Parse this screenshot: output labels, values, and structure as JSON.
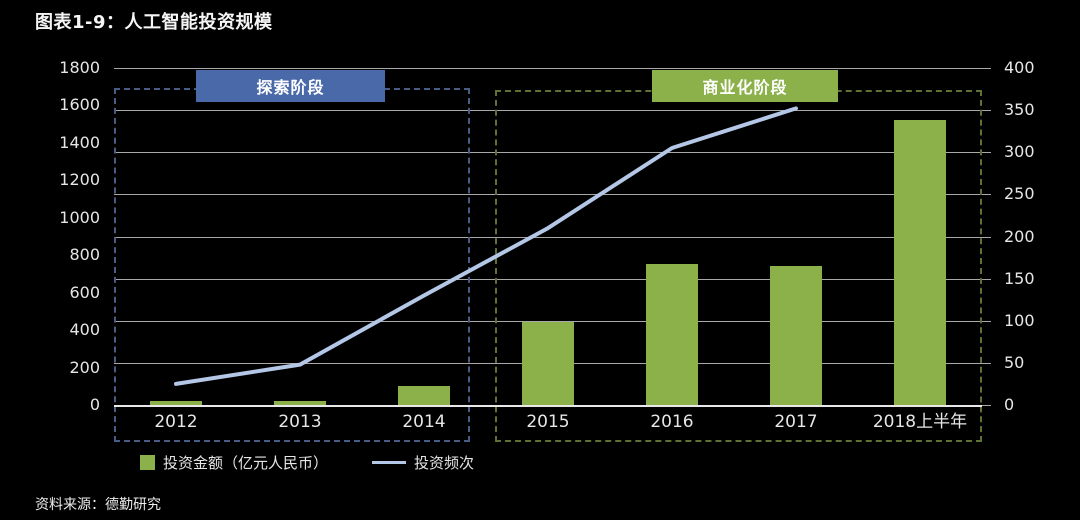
{
  "title": "图表1-9：人工智能投资规模",
  "source": "资料来源：德勤研究",
  "colors": {
    "background": "#000000",
    "bar": "#8cb14a",
    "line": "#b4c7e7",
    "gridline": "#a8a8a8",
    "axis_text": "#e6e6e6",
    "exploration_label_box": "#4a69a8",
    "commercialization_label_box": "#8cb14a",
    "exploration_dash": "#4a5c85",
    "commercialization_dash": "#5f7233"
  },
  "phases": [
    {
      "label": "探索阶段",
      "categories": [
        "2012",
        "2013",
        "2014"
      ]
    },
    {
      "label": "商业化阶段",
      "categories": [
        "2015",
        "2016",
        "2017",
        "2018上半年"
      ]
    }
  ],
  "legend": [
    {
      "label": "投资金额（亿元人民币）",
      "type": "bar"
    },
    {
      "label": "投资频次",
      "type": "line"
    }
  ],
  "chart_data": {
    "type": "bar",
    "subtype": "bar-and-line-dual-axis",
    "title": "图表1-9：人工智能投资规模",
    "categories": [
      "2012",
      "2013",
      "2014",
      "2015",
      "2016",
      "2017",
      "2018上半年"
    ],
    "series": [
      {
        "name": "投资金额（亿元人民币）",
        "type": "bar",
        "axis": "left",
        "values": [
          20,
          19,
          100,
          445,
          755,
          745,
          1520
        ]
      },
      {
        "name": "投资频次",
        "type": "line",
        "axis": "right",
        "values": [
          25,
          48,
          130,
          210,
          305,
          352,
          null
        ]
      }
    ],
    "left_axis": {
      "min": 0,
      "max": 1800,
      "step": 200
    },
    "right_axis": {
      "min": 0,
      "max": 400,
      "step": 50
    },
    "grid": "horizontal, at right-axis ticks",
    "legend_position": "bottom-left",
    "annotations": [
      "探索阶段 (2012-2014, blue dashed region)",
      "商业化阶段 (2015-2018上半年, green dashed region)"
    ]
  }
}
